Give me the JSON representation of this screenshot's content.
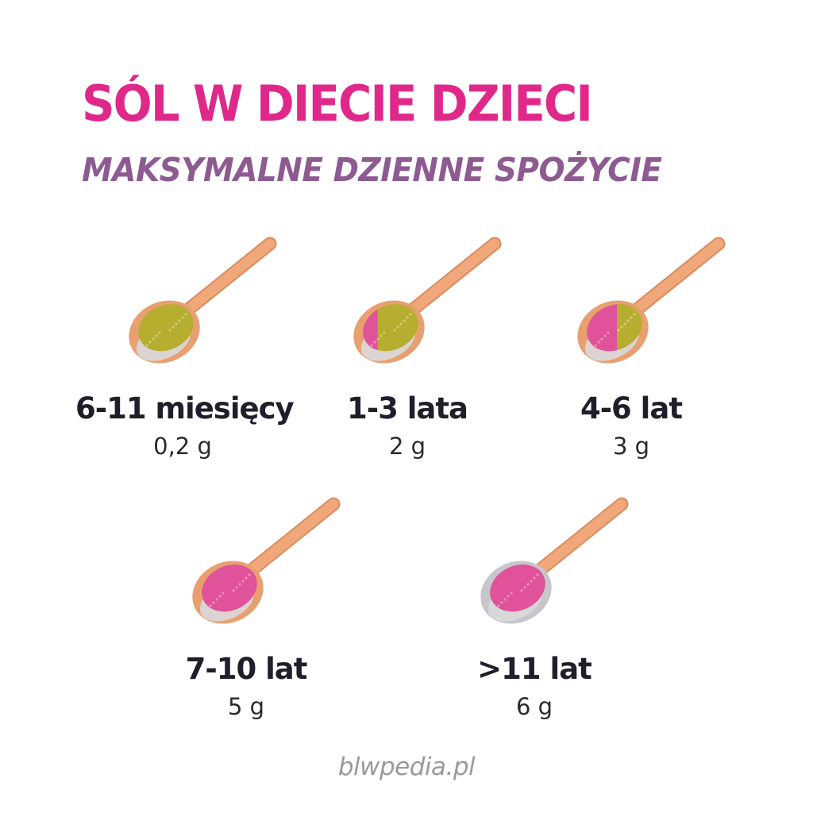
{
  "title": "SÓL W DIECIE DZIECI",
  "subtitle": "MAKSYMALNE DZIENNE SPOŻYCIE",
  "items": [
    {
      "age": "6-11 miesięcy",
      "amount": "0,2 g",
      "salt_fraction": 0.0
    },
    {
      "age": "1-3 lata",
      "amount": "2 g",
      "salt_fraction": 0.33
    },
    {
      "age": "4-6 lat",
      "amount": "3 g",
      "salt_fraction": 0.5
    },
    {
      "age": "7-10 lat",
      "amount": "5 g",
      "salt_fraction": 0.83
    },
    {
      "age": ">11 lat",
      "amount": "6 g",
      "salt_fraction": 1.0
    }
  ],
  "footer": "blwpedia.pl",
  "colors": {
    "title": "#e0288a",
    "subtitle": "#8e5a92",
    "salt": "#e0529a",
    "spoon_fill": "#b5ae2e",
    "handle": "#f0a77a",
    "bowl_steel": "#c6c6cc"
  }
}
